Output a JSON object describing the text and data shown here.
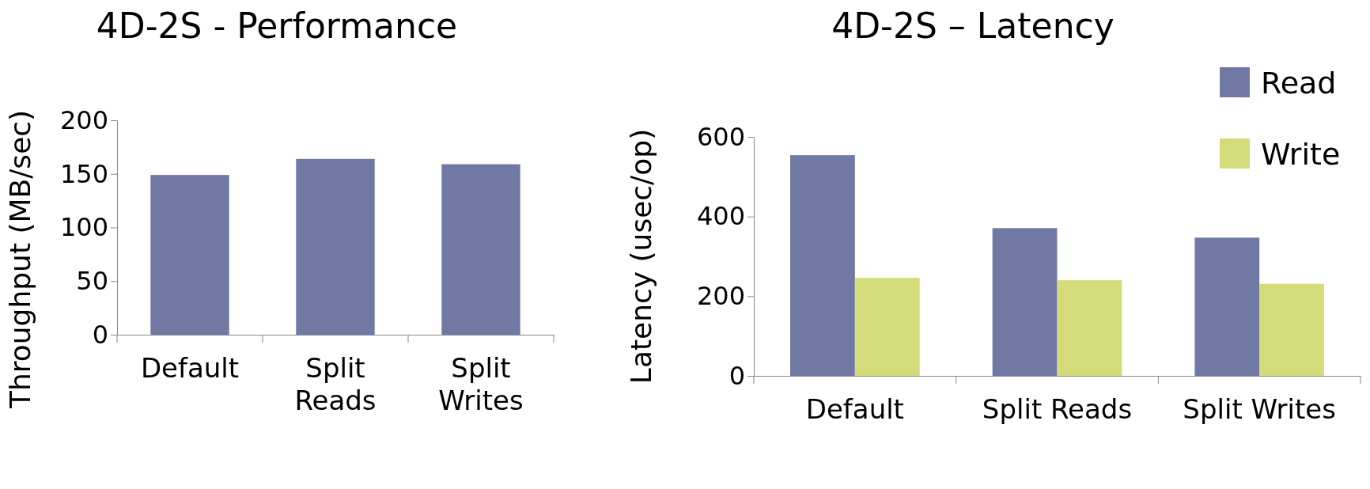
{
  "chart_data": [
    {
      "type": "bar",
      "title": "4D-2S - Performance",
      "ylabel": "Throughput (MB/sec)",
      "categories": [
        "Default",
        "Split Reads",
        "Split Writes"
      ],
      "values": [
        149,
        164,
        159
      ],
      "color": "#7079a3",
      "ylim": [
        0,
        200
      ],
      "yticks": [
        0,
        50,
        100,
        150,
        200
      ],
      "legend": false
    },
    {
      "type": "bar",
      "title": "4D-2S – Latency",
      "ylabel": "Latency (usec/op)",
      "categories": [
        "Default",
        "Split Reads",
        "Split Writes"
      ],
      "series": [
        {
          "name": "Read",
          "color": "#7079a3",
          "values": [
            554,
            371,
            347
          ]
        },
        {
          "name": "Write",
          "color": "#d4db7a",
          "values": [
            246,
            240,
            231
          ]
        }
      ],
      "ylim": [
        0,
        600
      ],
      "yticks": [
        0,
        200,
        400,
        600
      ],
      "legend": "right"
    }
  ]
}
